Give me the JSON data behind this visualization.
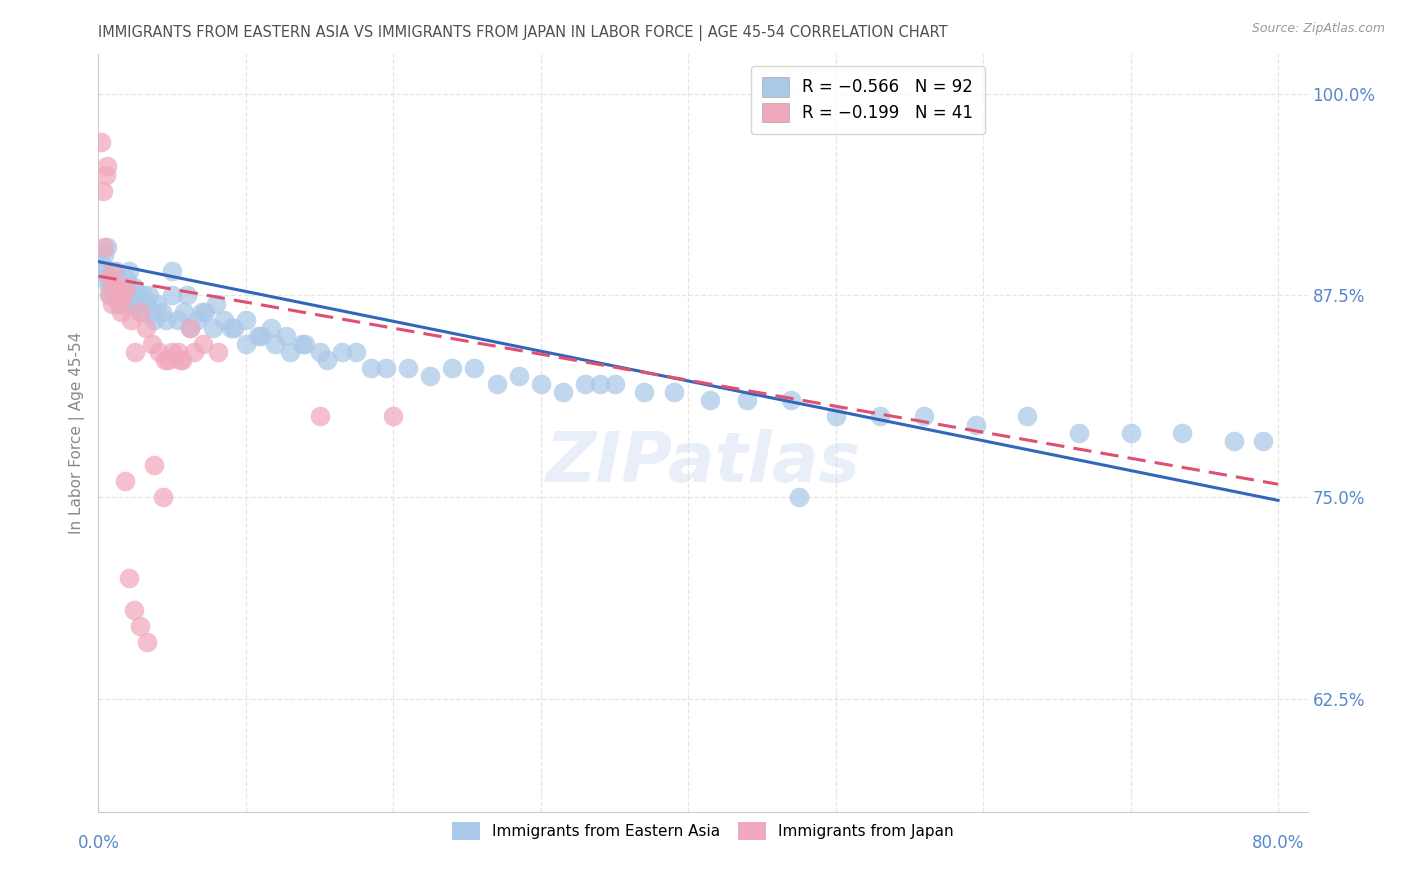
{
  "title": "IMMIGRANTS FROM EASTERN ASIA VS IMMIGRANTS FROM JAPAN IN LABOR FORCE | AGE 45-54 CORRELATION CHART",
  "source": "Source: ZipAtlas.com",
  "ylabel": "In Labor Force | Age 45-54",
  "xlim": [
    0.0,
    0.82
  ],
  "ylim": [
    0.555,
    1.025
  ],
  "yticks": [
    0.625,
    0.75,
    0.875,
    1.0
  ],
  "ytick_labels": [
    "62.5%",
    "75.0%",
    "87.5%",
    "100.0%"
  ],
  "xtick_left_label": "0.0%",
  "xtick_right_label": "80.0%",
  "blue_series": {
    "name": "Immigrants from Eastern Asia",
    "R": -0.566,
    "N": 92,
    "dot_color": "#aac8e8",
    "line_color": "#3366bb",
    "x": [
      0.002,
      0.003,
      0.004,
      0.005,
      0.006,
      0.007,
      0.008,
      0.009,
      0.01,
      0.011,
      0.012,
      0.013,
      0.014,
      0.015,
      0.016,
      0.017,
      0.018,
      0.019,
      0.02,
      0.021,
      0.022,
      0.023,
      0.024,
      0.025,
      0.026,
      0.027,
      0.028,
      0.03,
      0.032,
      0.034,
      0.036,
      0.038,
      0.04,
      0.043,
      0.046,
      0.05,
      0.054,
      0.058,
      0.062,
      0.067,
      0.072,
      0.078,
      0.085,
      0.092,
      0.1,
      0.108,
      0.117,
      0.127,
      0.138,
      0.15,
      0.05,
      0.06,
      0.07,
      0.08,
      0.09,
      0.1,
      0.11,
      0.12,
      0.13,
      0.14,
      0.155,
      0.165,
      0.175,
      0.185,
      0.195,
      0.21,
      0.225,
      0.24,
      0.255,
      0.27,
      0.285,
      0.3,
      0.315,
      0.33,
      0.35,
      0.37,
      0.39,
      0.415,
      0.44,
      0.47,
      0.5,
      0.53,
      0.56,
      0.595,
      0.63,
      0.665,
      0.7,
      0.735,
      0.77,
      0.79,
      0.34,
      0.475
    ],
    "y": [
      0.895,
      0.89,
      0.9,
      0.885,
      0.905,
      0.88,
      0.875,
      0.885,
      0.88,
      0.875,
      0.89,
      0.885,
      0.87,
      0.875,
      0.88,
      0.875,
      0.87,
      0.885,
      0.875,
      0.89,
      0.875,
      0.87,
      0.88,
      0.875,
      0.87,
      0.875,
      0.865,
      0.875,
      0.87,
      0.875,
      0.865,
      0.86,
      0.87,
      0.865,
      0.86,
      0.875,
      0.86,
      0.865,
      0.855,
      0.86,
      0.865,
      0.855,
      0.86,
      0.855,
      0.845,
      0.85,
      0.855,
      0.85,
      0.845,
      0.84,
      0.89,
      0.875,
      0.865,
      0.87,
      0.855,
      0.86,
      0.85,
      0.845,
      0.84,
      0.845,
      0.835,
      0.84,
      0.84,
      0.83,
      0.83,
      0.83,
      0.825,
      0.83,
      0.83,
      0.82,
      0.825,
      0.82,
      0.815,
      0.82,
      0.82,
      0.815,
      0.815,
      0.81,
      0.81,
      0.81,
      0.8,
      0.8,
      0.8,
      0.795,
      0.8,
      0.79,
      0.79,
      0.79,
      0.785,
      0.785,
      0.82,
      0.75
    ]
  },
  "pink_series": {
    "name": "Immigrants from Japan",
    "R": -0.199,
    "N": 41,
    "dot_color": "#f0a8bc",
    "line_color": "#e05070",
    "x": [
      0.002,
      0.003,
      0.004,
      0.005,
      0.006,
      0.007,
      0.008,
      0.009,
      0.01,
      0.011,
      0.012,
      0.013,
      0.015,
      0.017,
      0.019,
      0.022,
      0.025,
      0.028,
      0.032,
      0.036,
      0.041,
      0.047,
      0.054,
      0.062,
      0.071,
      0.081,
      0.015,
      0.018,
      0.021,
      0.024,
      0.028,
      0.033,
      0.038,
      0.044,
      0.05,
      0.057,
      0.065,
      0.15,
      0.2,
      0.055,
      0.045
    ],
    "y": [
      0.97,
      0.94,
      0.905,
      0.95,
      0.955,
      0.875,
      0.885,
      0.87,
      0.89,
      0.88,
      0.88,
      0.875,
      0.87,
      0.875,
      0.88,
      0.86,
      0.84,
      0.865,
      0.855,
      0.845,
      0.84,
      0.835,
      0.84,
      0.855,
      0.845,
      0.84,
      0.865,
      0.76,
      0.7,
      0.68,
      0.67,
      0.66,
      0.77,
      0.75,
      0.84,
      0.835,
      0.84,
      0.8,
      0.8,
      0.835,
      0.835
    ]
  },
  "legend": {
    "blue_label": "R = −0.566   N = 92",
    "pink_label": "R = −0.199   N = 41"
  },
  "watermark": "ZIPatlas",
  "bg_color": "#ffffff",
  "grid_color": "#e5e5e5",
  "title_color": "#505050",
  "right_tick_color": "#5588cc",
  "ylabel_color": "#888888"
}
